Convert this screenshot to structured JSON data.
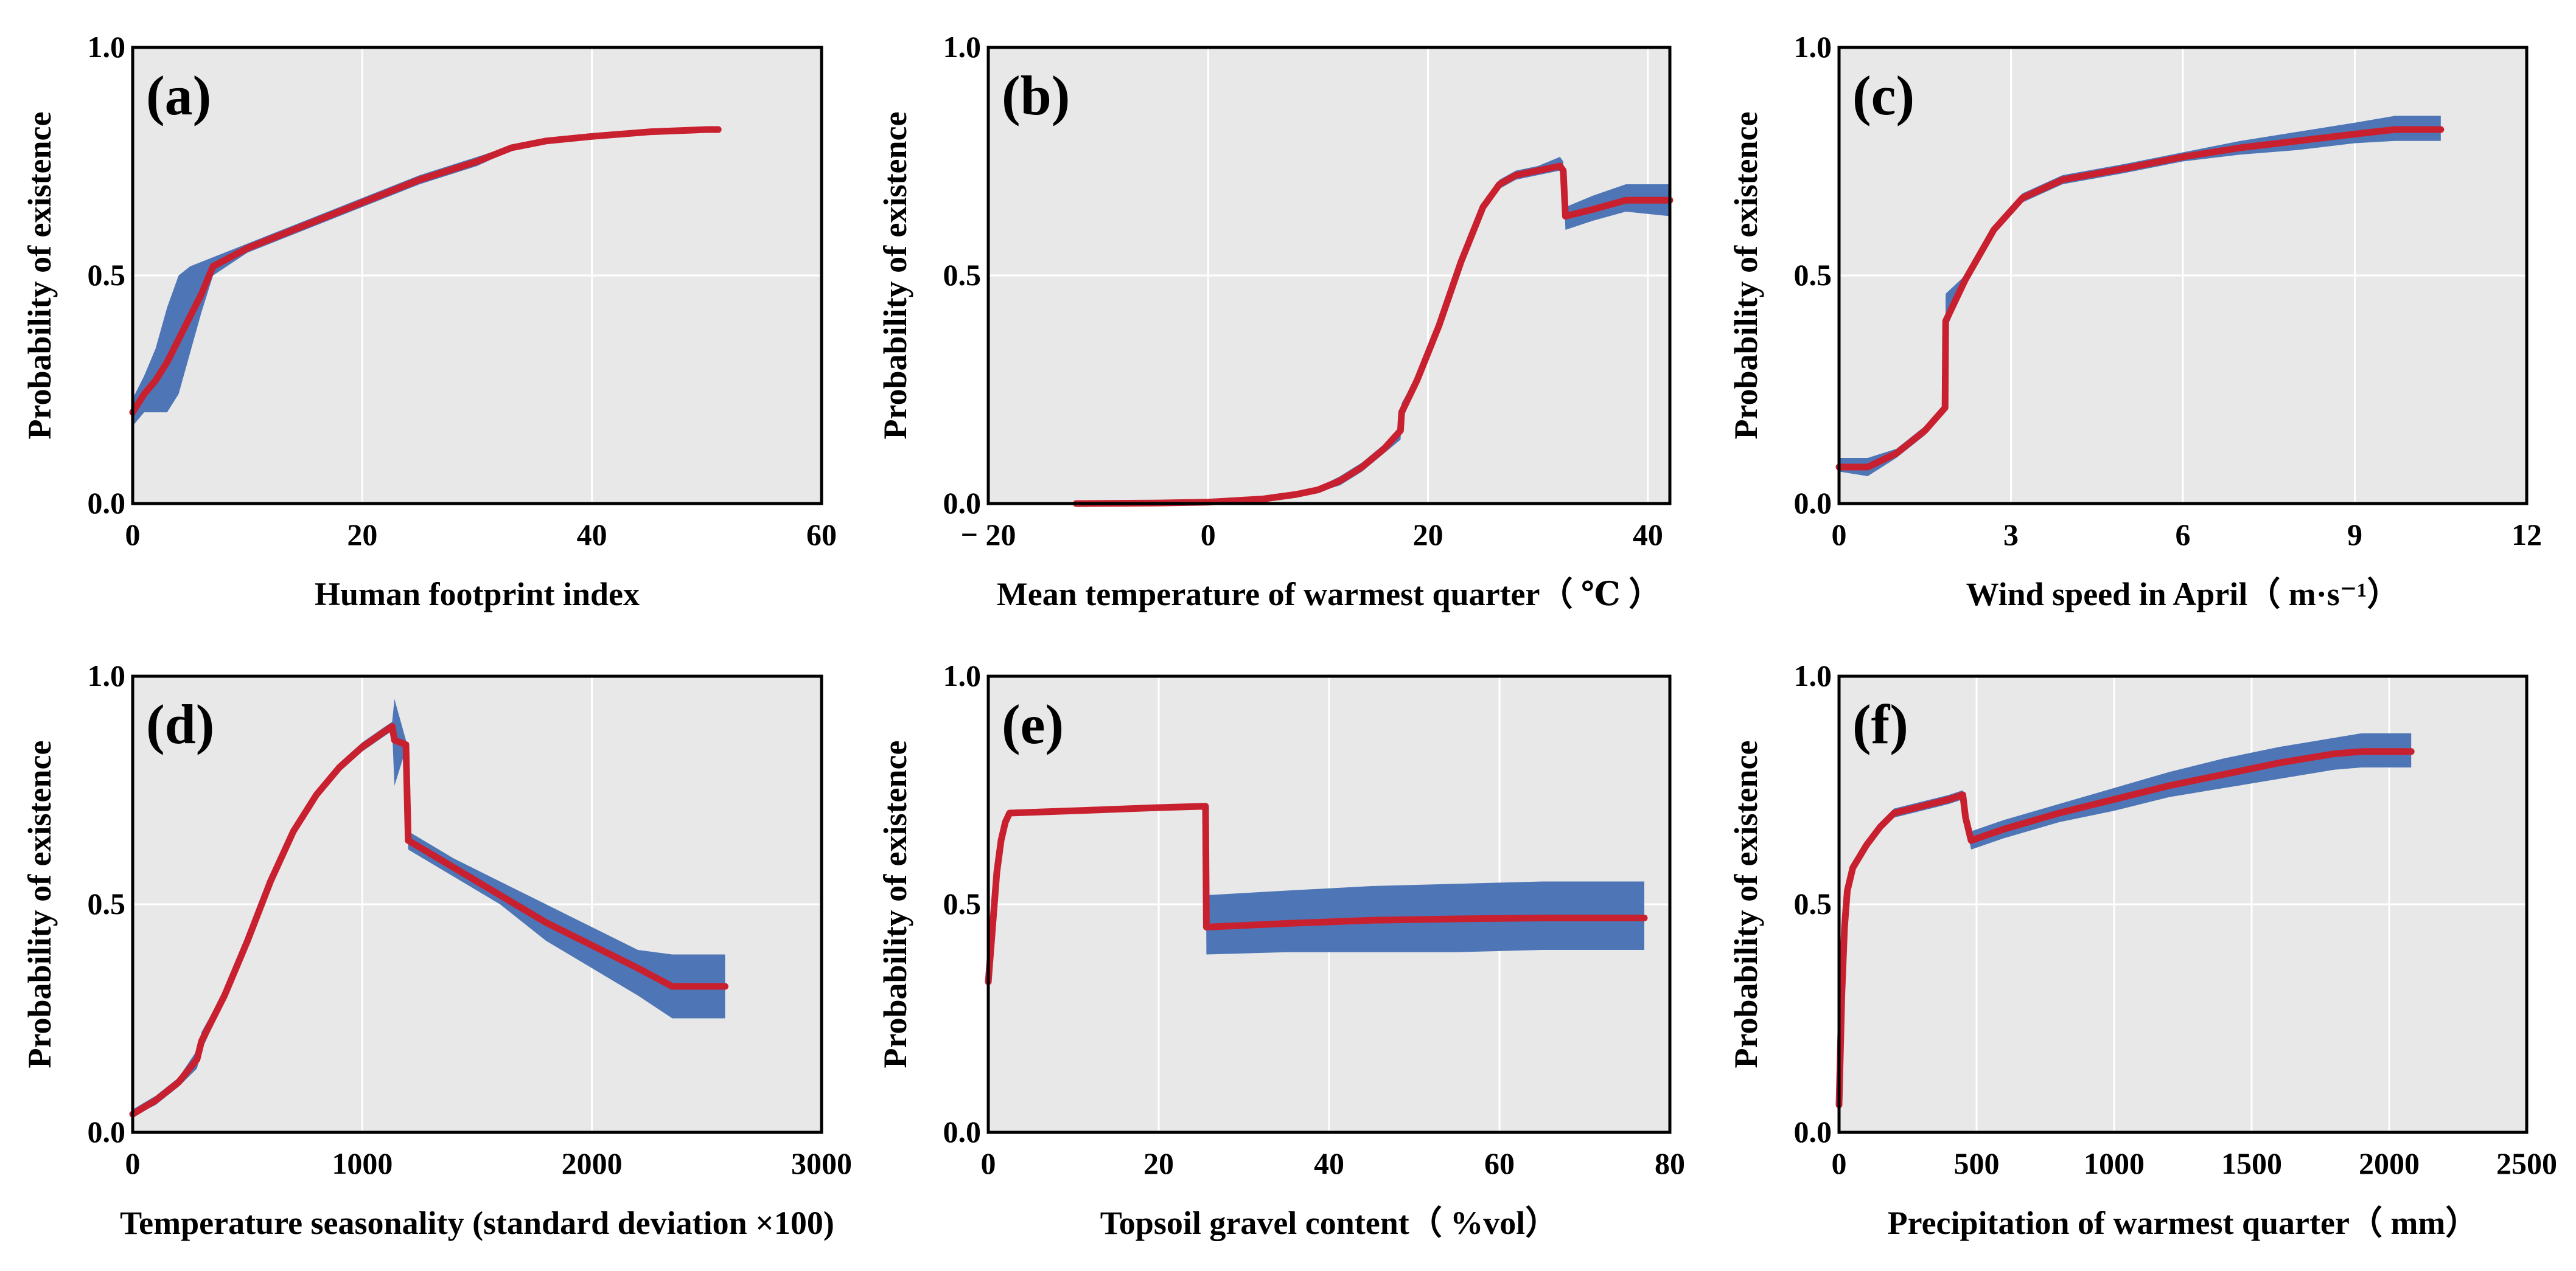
{
  "chart_data": [
    {
      "type": "line",
      "panel": "(a)",
      "xlabel": "Human footprint index",
      "ylabel": "Probability of existence",
      "xlim": [
        0,
        60
      ],
      "ylim": [
        0,
        1
      ],
      "xticks": [
        0,
        20,
        40,
        60
      ],
      "xtick_labels": [
        "0",
        "20",
        "40",
        "60"
      ],
      "yticks": [
        0,
        0.5,
        1
      ],
      "ytick_labels": [
        "0.0",
        "0.5",
        "1.0"
      ],
      "mean": {
        "x": [
          0,
          1,
          2,
          3,
          4,
          5,
          6,
          7,
          10,
          15,
          20,
          25,
          30,
          33,
          36,
          40,
          45,
          50,
          51
        ],
        "y": [
          0.2,
          0.24,
          0.27,
          0.31,
          0.36,
          0.41,
          0.46,
          0.52,
          0.56,
          0.61,
          0.66,
          0.71,
          0.75,
          0.78,
          0.795,
          0.805,
          0.815,
          0.82,
          0.82
        ]
      },
      "band_upper": {
        "x": [
          0,
          1,
          2,
          3,
          4,
          5,
          6,
          7,
          10,
          15,
          20,
          25,
          30,
          33,
          36,
          40,
          45,
          50,
          51
        ],
        "y": [
          0.23,
          0.28,
          0.34,
          0.43,
          0.5,
          0.52,
          0.53,
          0.54,
          0.57,
          0.62,
          0.67,
          0.72,
          0.76,
          0.785,
          0.8,
          0.81,
          0.82,
          0.825,
          0.825
        ]
      },
      "band_lower": {
        "x": [
          0,
          1,
          2,
          3,
          4,
          5,
          6,
          7,
          10,
          15,
          20,
          25,
          30,
          33,
          36,
          40,
          45,
          50,
          51
        ],
        "y": [
          0.17,
          0.2,
          0.2,
          0.2,
          0.24,
          0.33,
          0.42,
          0.5,
          0.55,
          0.6,
          0.65,
          0.7,
          0.74,
          0.775,
          0.79,
          0.8,
          0.81,
          0.815,
          0.815
        ]
      }
    },
    {
      "type": "line",
      "panel": "(b)",
      "xlabel": "Mean temperature of warmest quarter（ ℃ ）",
      "ylabel": "Probability of existence",
      "xlim": [
        -20,
        42
      ],
      "ylim": [
        0,
        1
      ],
      "xticks": [
        -20,
        0,
        20,
        40
      ],
      "xtick_labels": [
        "− 20",
        "0",
        "20",
        "40"
      ],
      "yticks": [
        0,
        0.5,
        1
      ],
      "ytick_labels": [
        "0.0",
        "0.5",
        "1.0"
      ],
      "mean": {
        "x": [
          -12,
          -5,
          0,
          5,
          8,
          10,
          12,
          14,
          16,
          17.5,
          17.6,
          19,
          21,
          23,
          25,
          26.5,
          28,
          30,
          32,
          32.3,
          32.5,
          35,
          38,
          42
        ],
        "y": [
          0,
          0.001,
          0.003,
          0.01,
          0.02,
          0.03,
          0.05,
          0.08,
          0.12,
          0.16,
          0.2,
          0.27,
          0.39,
          0.53,
          0.65,
          0.7,
          0.72,
          0.73,
          0.74,
          0.73,
          0.63,
          0.645,
          0.665,
          0.665
        ]
      },
      "band_upper": {
        "x": [
          -12,
          -5,
          0,
          5,
          8,
          10,
          12,
          14,
          16,
          17.5,
          17.6,
          19,
          21,
          23,
          25,
          26.5,
          28,
          30,
          32,
          32.3,
          32.5,
          35,
          38,
          42
        ],
        "y": [
          0,
          0.001,
          0.003,
          0.01,
          0.02,
          0.035,
          0.06,
          0.09,
          0.13,
          0.17,
          0.22,
          0.28,
          0.4,
          0.54,
          0.66,
          0.71,
          0.73,
          0.74,
          0.76,
          0.75,
          0.65,
          0.675,
          0.7,
          0.7
        ]
      },
      "band_lower": {
        "x": [
          -12,
          -5,
          0,
          5,
          8,
          10,
          12,
          14,
          16,
          17.5,
          17.6,
          19,
          21,
          23,
          25,
          26.5,
          28,
          30,
          32,
          32.3,
          32.5,
          35,
          38,
          42
        ],
        "y": [
          0,
          0.001,
          0.003,
          0.01,
          0.02,
          0.025,
          0.04,
          0.07,
          0.11,
          0.14,
          0.18,
          0.26,
          0.38,
          0.52,
          0.64,
          0.69,
          0.71,
          0.72,
          0.73,
          0.72,
          0.6,
          0.62,
          0.64,
          0.63
        ]
      }
    },
    {
      "type": "line",
      "panel": "(c)",
      "xlabel": "Wind speed in April（ m·s⁻¹）",
      "ylabel": "Probability of existence",
      "xlim": [
        0,
        12
      ],
      "ylim": [
        0,
        1
      ],
      "xticks": [
        0,
        3,
        6,
        9,
        12
      ],
      "xtick_labels": [
        "0",
        "3",
        "6",
        "9",
        "12"
      ],
      "yticks": [
        0,
        0.5,
        1
      ],
      "ytick_labels": [
        "0.0",
        "0.5",
        "1.0"
      ],
      "mean": {
        "x": [
          0,
          0.5,
          1,
          1.5,
          1.85,
          1.86,
          2.2,
          2.7,
          3.2,
          3.9,
          5,
          6,
          7,
          8,
          9,
          9.7,
          10.5
        ],
        "y": [
          0.08,
          0.08,
          0.11,
          0.16,
          0.21,
          0.4,
          0.49,
          0.6,
          0.67,
          0.71,
          0.735,
          0.76,
          0.78,
          0.795,
          0.81,
          0.82,
          0.82
        ]
      },
      "band_upper": {
        "x": [
          0,
          0.5,
          1,
          1.5,
          1.85,
          1.86,
          2.2,
          2.7,
          3.2,
          3.9,
          5,
          6,
          7,
          8,
          9,
          9.7,
          10.5
        ],
        "y": [
          0.1,
          0.1,
          0.12,
          0.17,
          0.22,
          0.46,
          0.5,
          0.61,
          0.68,
          0.72,
          0.745,
          0.77,
          0.795,
          0.815,
          0.835,
          0.85,
          0.85
        ]
      },
      "band_lower": {
        "x": [
          0,
          0.5,
          1,
          1.5,
          1.85,
          1.86,
          2.2,
          2.7,
          3.2,
          3.9,
          5,
          6,
          7,
          8,
          9,
          9.7,
          10.5
        ],
        "y": [
          0.07,
          0.06,
          0.1,
          0.15,
          0.2,
          0.38,
          0.48,
          0.59,
          0.66,
          0.7,
          0.725,
          0.75,
          0.765,
          0.775,
          0.79,
          0.795,
          0.795
        ]
      }
    },
    {
      "type": "line",
      "panel": "(d)",
      "xlabel": "Temperature seasonality (standard  deviation ×100)",
      "ylabel": "Probability of existence",
      "xlim": [
        0,
        3000
      ],
      "ylim": [
        0,
        1
      ],
      "xticks": [
        0,
        1000,
        2000,
        3000
      ],
      "xtick_labels": [
        "0",
        "1000",
        "2000",
        "3000"
      ],
      "yticks": [
        0,
        0.5,
        1
      ],
      "ytick_labels": [
        "0.0",
        "0.5",
        "1.0"
      ],
      "mean": {
        "x": [
          0,
          100,
          200,
          280,
          300,
          400,
          500,
          600,
          700,
          800,
          900,
          1000,
          1100,
          1130,
          1140,
          1190,
          1200,
          1400,
          1600,
          1800,
          2000,
          2200,
          2350,
          2580
        ],
        "y": [
          0.04,
          0.07,
          0.11,
          0.16,
          0.2,
          0.3,
          0.42,
          0.55,
          0.66,
          0.74,
          0.8,
          0.845,
          0.88,
          0.89,
          0.86,
          0.85,
          0.64,
          0.58,
          0.52,
          0.46,
          0.41,
          0.36,
          0.32,
          0.32
        ]
      },
      "band_upper": {
        "x": [
          0,
          100,
          200,
          280,
          300,
          400,
          500,
          600,
          700,
          800,
          900,
          1000,
          1100,
          1130,
          1140,
          1190,
          1200,
          1400,
          1600,
          1800,
          2000,
          2200,
          2350,
          2580
        ],
        "y": [
          0.05,
          0.08,
          0.12,
          0.18,
          0.22,
          0.31,
          0.43,
          0.56,
          0.67,
          0.75,
          0.81,
          0.855,
          0.89,
          0.9,
          0.95,
          0.86,
          0.66,
          0.6,
          0.55,
          0.5,
          0.45,
          0.4,
          0.39,
          0.39
        ]
      },
      "band_lower": {
        "x": [
          0,
          100,
          200,
          280,
          300,
          400,
          500,
          600,
          700,
          800,
          900,
          1000,
          1100,
          1130,
          1140,
          1190,
          1200,
          1400,
          1600,
          1800,
          2000,
          2200,
          2350,
          2580
        ],
        "y": [
          0.035,
          0.06,
          0.1,
          0.14,
          0.18,
          0.29,
          0.41,
          0.54,
          0.65,
          0.73,
          0.79,
          0.835,
          0.87,
          0.88,
          0.76,
          0.84,
          0.62,
          0.56,
          0.5,
          0.42,
          0.36,
          0.3,
          0.25,
          0.25
        ]
      }
    },
    {
      "type": "line",
      "panel": "(e)",
      "xlabel": "Topsoil gravel content（ %vol）",
      "ylabel": "Probability of existence",
      "xlim": [
        0,
        80
      ],
      "ylim": [
        0,
        1
      ],
      "xticks": [
        0,
        20,
        40,
        60,
        80
      ],
      "xtick_labels": [
        "0",
        "20",
        "40",
        "60",
        "80"
      ],
      "yticks": [
        0,
        0.5,
        1
      ],
      "ytick_labels": [
        "0.0",
        "0.5",
        "1.0"
      ],
      "mean": {
        "x": [
          0,
          0.5,
          1,
          1.5,
          2,
          2.5,
          10,
          20,
          25.5,
          25.6,
          35,
          45,
          55,
          65,
          77
        ],
        "y": [
          0.33,
          0.45,
          0.57,
          0.64,
          0.68,
          0.7,
          0.705,
          0.712,
          0.715,
          0.45,
          0.458,
          0.465,
          0.468,
          0.47,
          0.47
        ]
      },
      "band_upper": {
        "x": [
          0,
          0.5,
          1,
          1.5,
          2,
          2.5,
          10,
          20,
          25.5,
          25.6,
          35,
          45,
          55,
          65,
          77
        ],
        "y": [
          0.34,
          0.46,
          0.58,
          0.65,
          0.69,
          0.705,
          0.71,
          0.717,
          0.72,
          0.52,
          0.53,
          0.54,
          0.545,
          0.55,
          0.55
        ]
      },
      "band_lower": {
        "x": [
          0,
          0.5,
          1,
          1.5,
          2,
          2.5,
          10,
          20,
          25.5,
          25.6,
          35,
          45,
          55,
          65,
          77
        ],
        "y": [
          0.32,
          0.44,
          0.56,
          0.63,
          0.67,
          0.695,
          0.7,
          0.707,
          0.71,
          0.39,
          0.395,
          0.395,
          0.395,
          0.4,
          0.4
        ]
      }
    },
    {
      "type": "line",
      "panel": "(f)",
      "xlabel": "Precipitation of warmest quarter（ mm）",
      "ylabel": "Probability of existence",
      "xlim": [
        0,
        2500
      ],
      "ylim": [
        0,
        1
      ],
      "xticks": [
        0,
        500,
        1000,
        1500,
        2000,
        2500
      ],
      "xtick_labels": [
        "0",
        "500",
        "1000",
        "1500",
        "2000",
        "2500"
      ],
      "yticks": [
        0,
        0.5,
        1
      ],
      "ytick_labels": [
        "0.0",
        "0.5",
        "1.0"
      ],
      "mean": {
        "x": [
          0,
          10,
          20,
          30,
          50,
          100,
          150,
          200,
          300,
          400,
          450,
          460,
          480,
          600,
          800,
          1000,
          1200,
          1400,
          1600,
          1800,
          1900,
          2080
        ],
        "y": [
          0.06,
          0.3,
          0.45,
          0.53,
          0.58,
          0.63,
          0.67,
          0.7,
          0.715,
          0.73,
          0.74,
          0.69,
          0.64,
          0.665,
          0.7,
          0.73,
          0.76,
          0.785,
          0.81,
          0.83,
          0.835,
          0.835
        ]
      },
      "band_upper": {
        "x": [
          0,
          10,
          20,
          30,
          50,
          100,
          150,
          200,
          300,
          400,
          450,
          460,
          480,
          600,
          800,
          1000,
          1200,
          1400,
          1600,
          1800,
          1900,
          2080
        ],
        "y": [
          0.07,
          0.31,
          0.46,
          0.54,
          0.59,
          0.64,
          0.68,
          0.71,
          0.725,
          0.74,
          0.75,
          0.7,
          0.66,
          0.685,
          0.72,
          0.755,
          0.79,
          0.82,
          0.845,
          0.865,
          0.875,
          0.875
        ]
      },
      "band_lower": {
        "x": [
          0,
          10,
          20,
          30,
          50,
          100,
          150,
          200,
          300,
          400,
          450,
          460,
          480,
          600,
          800,
          1000,
          1200,
          1400,
          1600,
          1800,
          1900,
          2080
        ],
        "y": [
          0.05,
          0.29,
          0.44,
          0.52,
          0.57,
          0.62,
          0.66,
          0.69,
          0.705,
          0.72,
          0.73,
          0.68,
          0.62,
          0.645,
          0.68,
          0.705,
          0.735,
          0.755,
          0.775,
          0.795,
          0.8,
          0.8
        ]
      }
    }
  ],
  "colors": {
    "panel_background": "#e8e8e8",
    "grid": "#ffffff",
    "band": "#4e76b6",
    "mean_line": "#c8202f",
    "frame": "#000000"
  }
}
